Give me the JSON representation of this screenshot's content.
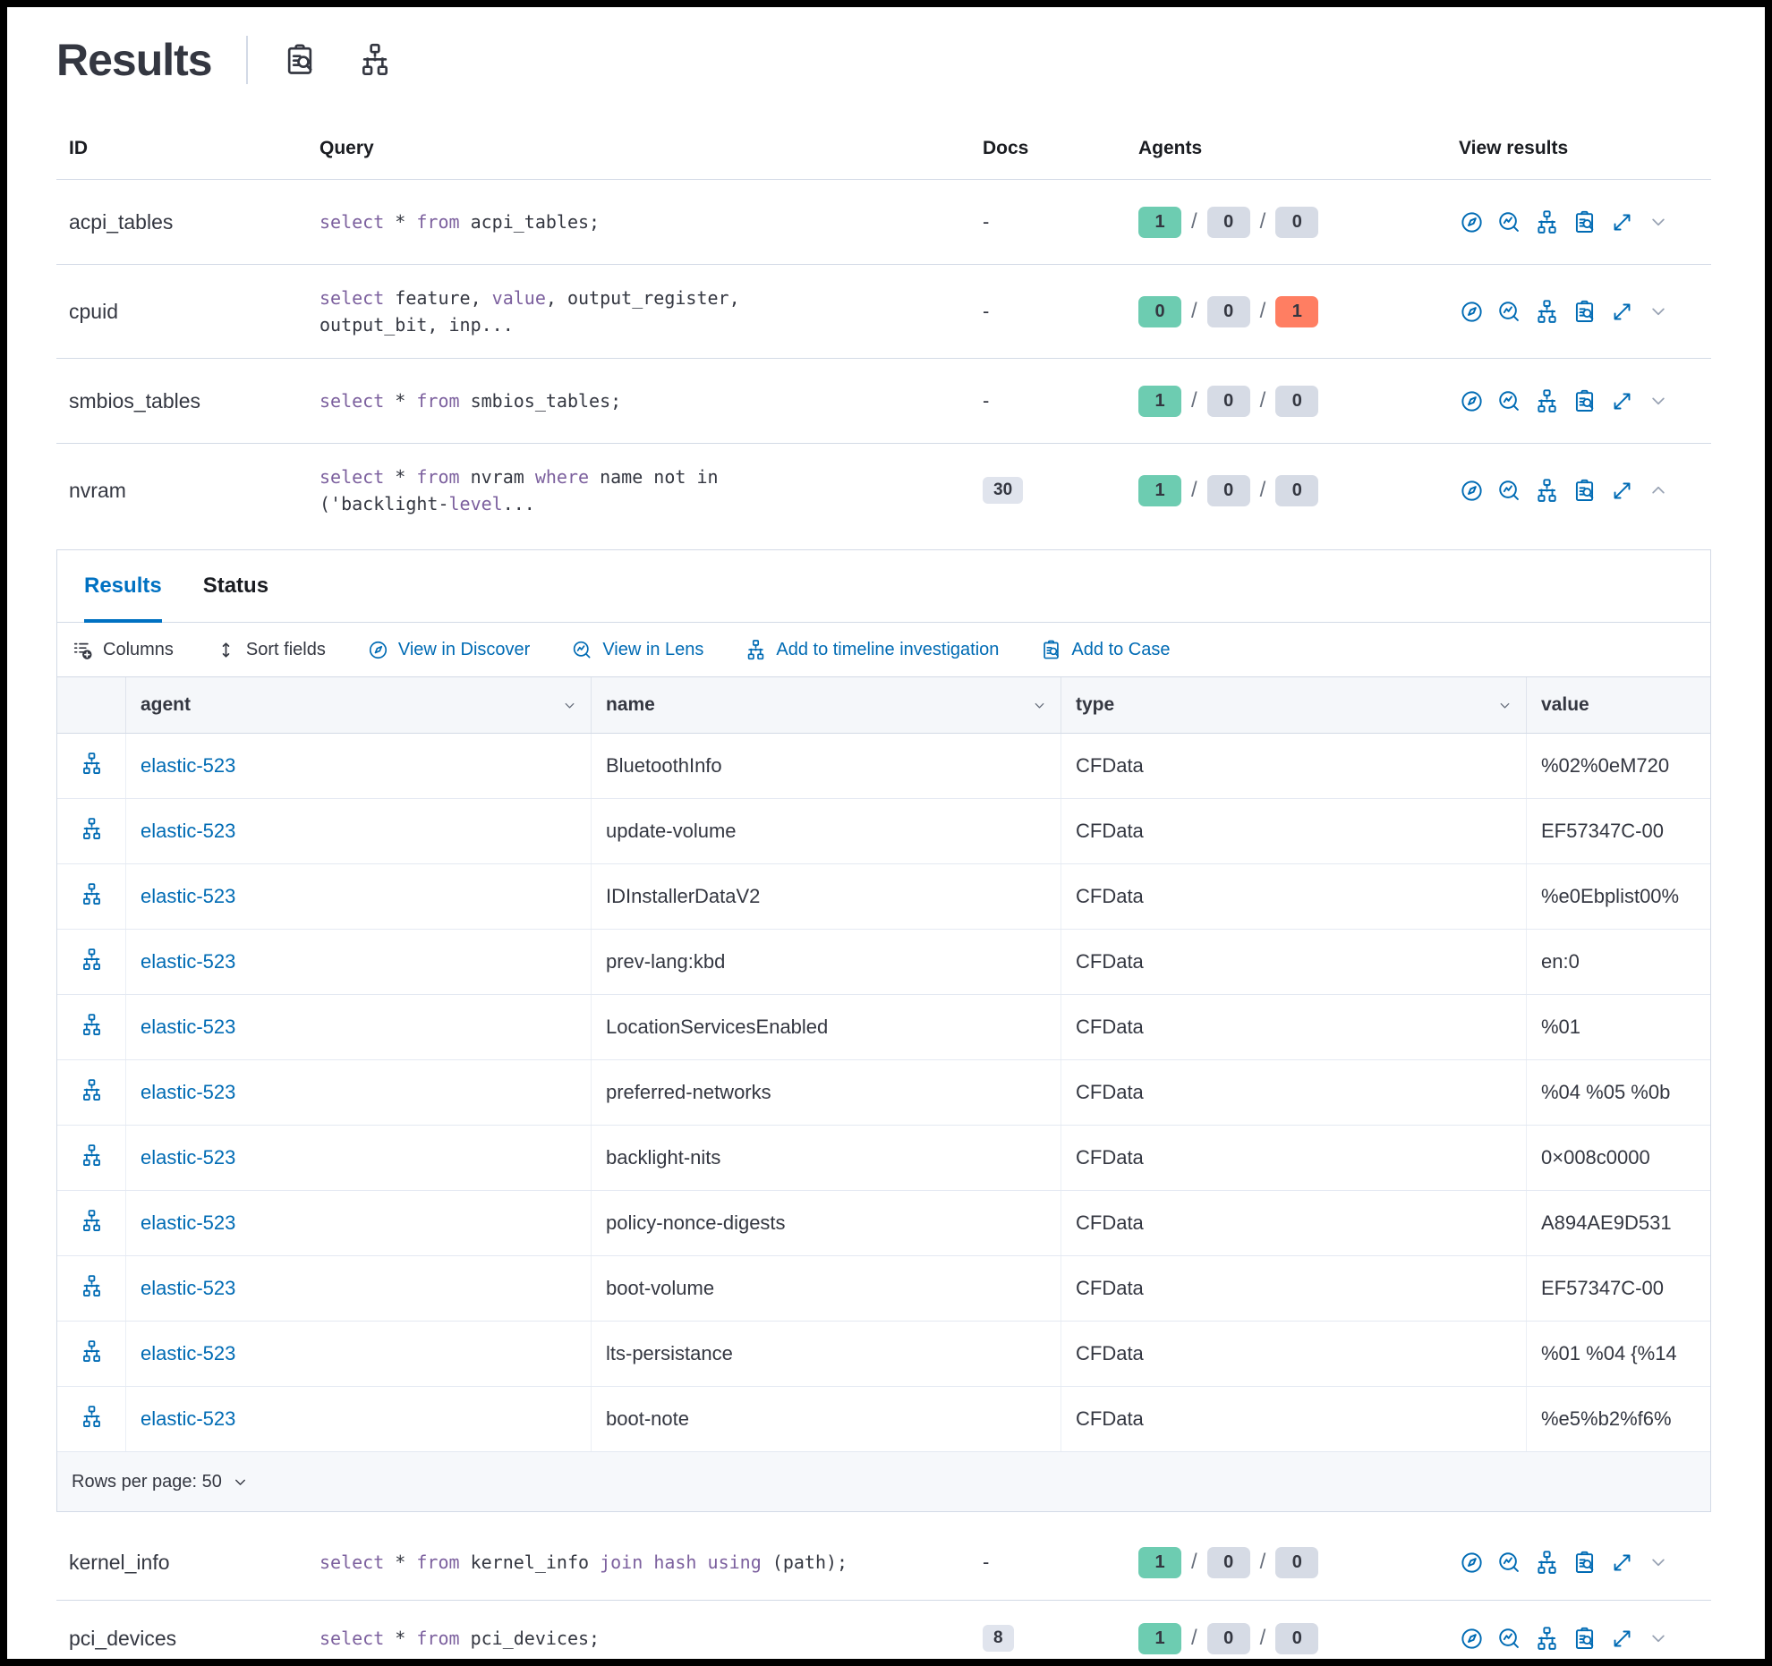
{
  "colors": {
    "keyword": "#7c609e",
    "link_blue": "#006bb4",
    "tab_blue": "#0071c2",
    "badge_green": "#6dccb1",
    "badge_gray": "#d6dbe5",
    "badge_red": "#ff7e62",
    "text_dark": "#343741"
  },
  "header": {
    "title": "Results",
    "icons": [
      "case-icon",
      "timeline-icon"
    ]
  },
  "main_table": {
    "columns": [
      "ID",
      "Query",
      "Docs",
      "Agents",
      "View results"
    ],
    "view_actions": [
      "discover-icon",
      "lens-icon",
      "timeline-icon",
      "case-icon",
      "expand-icon"
    ],
    "rows": [
      {
        "id": "acpi_tables",
        "query": [
          [
            {
              "t": "select",
              "k": true
            },
            {
              "t": " * "
            },
            {
              "t": "from",
              "k": true
            },
            {
              "t": " acpi_tables;"
            }
          ]
        ],
        "docs": "-",
        "docs_is_badge": false,
        "agents": [
          {
            "value": "1",
            "color": "green"
          },
          {
            "value": "0",
            "color": "gray"
          },
          {
            "value": "0",
            "color": "gray"
          }
        ],
        "expanded": false
      },
      {
        "id": "cpuid",
        "query": [
          [
            {
              "t": "select",
              "k": true
            },
            {
              "t": " feature, "
            },
            {
              "t": "value",
              "k": true
            },
            {
              "t": ", output_register,"
            }
          ],
          [
            {
              "t": "output_bit, inp..."
            }
          ]
        ],
        "docs": "-",
        "docs_is_badge": false,
        "agents": [
          {
            "value": "0",
            "color": "green"
          },
          {
            "value": "0",
            "color": "gray"
          },
          {
            "value": "1",
            "color": "red"
          }
        ],
        "expanded": false
      },
      {
        "id": "smbios_tables",
        "query": [
          [
            {
              "t": "select",
              "k": true
            },
            {
              "t": " * "
            },
            {
              "t": "from",
              "k": true
            },
            {
              "t": " smbios_tables;"
            }
          ]
        ],
        "docs": "-",
        "docs_is_badge": false,
        "agents": [
          {
            "value": "1",
            "color": "green"
          },
          {
            "value": "0",
            "color": "gray"
          },
          {
            "value": "0",
            "color": "gray"
          }
        ],
        "expanded": false
      },
      {
        "id": "nvram",
        "query": [
          [
            {
              "t": "select",
              "k": true
            },
            {
              "t": " * "
            },
            {
              "t": "from",
              "k": true
            },
            {
              "t": " nvram "
            },
            {
              "t": "where",
              "k": true
            },
            {
              "t": " name not in"
            }
          ],
          [
            {
              "t": "('backlight-"
            },
            {
              "t": "level",
              "k": true
            },
            {
              "t": "..."
            }
          ]
        ],
        "docs": "30",
        "docs_is_badge": true,
        "agents": [
          {
            "value": "1",
            "color": "green"
          },
          {
            "value": "0",
            "color": "gray"
          },
          {
            "value": "0",
            "color": "gray"
          }
        ],
        "expanded": true
      },
      {
        "id": "kernel_info",
        "query": [
          [
            {
              "t": "select",
              "k": true
            },
            {
              "t": " * "
            },
            {
              "t": "from",
              "k": true
            },
            {
              "t": " kernel_info "
            },
            {
              "t": "join",
              "k": true
            },
            {
              "t": " "
            },
            {
              "t": "hash",
              "k": true
            },
            {
              "t": " "
            },
            {
              "t": "using",
              "k": true
            },
            {
              "t": " (path);"
            }
          ]
        ],
        "docs": "-",
        "docs_is_badge": false,
        "agents": [
          {
            "value": "1",
            "color": "green"
          },
          {
            "value": "0",
            "color": "gray"
          },
          {
            "value": "0",
            "color": "gray"
          }
        ],
        "expanded": false
      },
      {
        "id": "pci_devices",
        "query": [
          [
            {
              "t": "select",
              "k": true
            },
            {
              "t": " * "
            },
            {
              "t": "from",
              "k": true
            },
            {
              "t": " pci_devices;"
            }
          ]
        ],
        "docs": "8",
        "docs_is_badge": true,
        "agents": [
          {
            "value": "1",
            "color": "green"
          },
          {
            "value": "0",
            "color": "gray"
          },
          {
            "value": "0",
            "color": "gray"
          }
        ],
        "expanded": false
      }
    ]
  },
  "expanded_panel": {
    "tabs": [
      {
        "label": "Results",
        "active": true
      },
      {
        "label": "Status",
        "active": false
      }
    ],
    "toolbar": [
      {
        "label": "Columns",
        "icon": "columns-icon",
        "variant": "dark"
      },
      {
        "label": "Sort fields",
        "icon": "sort-icon",
        "variant": "dark"
      },
      {
        "label": "View in Discover",
        "icon": "discover-icon",
        "variant": "link"
      },
      {
        "label": "View in Lens",
        "icon": "lens-icon",
        "variant": "link"
      },
      {
        "label": "Add to timeline investigation",
        "icon": "timeline-icon",
        "variant": "link"
      },
      {
        "label": "Add to Case",
        "icon": "case-icon",
        "variant": "link"
      }
    ],
    "grid": {
      "columns": [
        {
          "label": "agent",
          "sortable": true
        },
        {
          "label": "name",
          "sortable": true
        },
        {
          "label": "type",
          "sortable": true
        },
        {
          "label": "value",
          "sortable": false
        }
      ],
      "row_icon": "timeline-icon",
      "rows": [
        {
          "agent": "elastic-523",
          "name": "BluetoothInfo",
          "type": "CFData",
          "value": "%02%0eM720"
        },
        {
          "agent": "elastic-523",
          "name": "update-volume",
          "type": "CFData",
          "value": "EF57347C-00"
        },
        {
          "agent": "elastic-523",
          "name": "IDInstallerDataV2",
          "type": "CFData",
          "value": "%e0Ebplist00%"
        },
        {
          "agent": "elastic-523",
          "name": "prev-lang:kbd",
          "type": "CFData",
          "value": "en:0"
        },
        {
          "agent": "elastic-523",
          "name": "LocationServicesEnabled",
          "type": "CFData",
          "value": "%01"
        },
        {
          "agent": "elastic-523",
          "name": "preferred-networks",
          "type": "CFData",
          "value": "%04 %05 %0b"
        },
        {
          "agent": "elastic-523",
          "name": "backlight-nits",
          "type": "CFData",
          "value": "0×008c0000"
        },
        {
          "agent": "elastic-523",
          "name": "policy-nonce-digests",
          "type": "CFData",
          "value": "A894AE9D531"
        },
        {
          "agent": "elastic-523",
          "name": "boot-volume",
          "type": "CFData",
          "value": "EF57347C-00"
        },
        {
          "agent": "elastic-523",
          "name": "lts-persistance",
          "type": "CFData",
          "value": "%01 %04 {%14"
        },
        {
          "agent": "elastic-523",
          "name": "boot-note",
          "type": "CFData",
          "value": "%e5%b2%f6%"
        }
      ]
    },
    "footer": {
      "rows_per_page_label": "Rows per page: 50"
    }
  }
}
